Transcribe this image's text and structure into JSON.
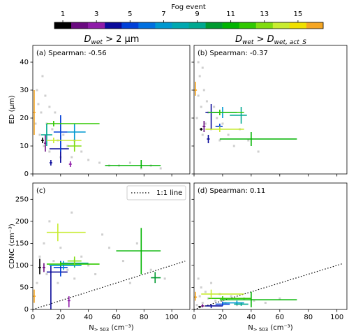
{
  "colorbar": {
    "title": "Fog event",
    "range": [
      0.5,
      16.5
    ],
    "ticks": [
      1,
      3,
      5,
      7,
      9,
      11,
      13,
      15
    ],
    "colors": [
      "#000000",
      "#6a0a80",
      "#8e1aa8",
      "#0a0a9a",
      "#0040d8",
      "#0070e0",
      "#0098d0",
      "#00a8b0",
      "#00a890",
      "#009a30",
      "#00b400",
      "#30c800",
      "#80dc10",
      "#c8ec30",
      "#f0e000",
      "#f5a623"
    ]
  },
  "column_titles": [
    {
      "base": "D",
      "sub": "wet",
      "rest": " > 2 μm"
    },
    {
      "base": "D",
      "sub": "wet",
      "rest": " > ",
      "base2": "D",
      "sub2": "wet, act_S"
    }
  ],
  "x_label": {
    "base": "N",
    "sub": "> 503",
    "rest": " (cm⁻³)"
  },
  "chart_data": [
    {
      "type": "errorbar",
      "label": "(a) Spearman: -0.56",
      "y_label": "ED (μm)",
      "xlim": [
        0,
        113
      ],
      "ylim": [
        0,
        46
      ],
      "xticks": [
        0,
        20,
        40,
        60,
        80,
        100
      ],
      "yticks": [
        0,
        10,
        20,
        30,
        40
      ],
      "points": [
        [
          2,
          18
        ],
        [
          4,
          25
        ],
        [
          5,
          14
        ],
        [
          6,
          22
        ],
        [
          8,
          10
        ],
        [
          10,
          18
        ],
        [
          12,
          8
        ],
        [
          14,
          16
        ],
        [
          16,
          22
        ],
        [
          18,
          12
        ],
        [
          20,
          6
        ],
        [
          22,
          14
        ],
        [
          25,
          10
        ],
        [
          28,
          6
        ],
        [
          30,
          12
        ],
        [
          35,
          8
        ],
        [
          40,
          5
        ],
        [
          48,
          4
        ],
        [
          55,
          3
        ],
        [
          62,
          3
        ],
        [
          70,
          4
        ],
        [
          78,
          2
        ],
        [
          85,
          3
        ],
        [
          92,
          2
        ],
        [
          3,
          30
        ],
        [
          7,
          35
        ],
        [
          9,
          28
        ],
        [
          12,
          24
        ]
      ],
      "errors": [
        {
          "event": 16,
          "x": 1,
          "y": 22,
          "xerr": [
            0,
            2
          ],
          "yerr": [
            14,
            30
          ]
        },
        {
          "event": 1,
          "x": 7,
          "y": 12,
          "xerr": [
            6,
            8
          ],
          "yerr": [
            11,
            13
          ]
        },
        {
          "event": 2,
          "x": 9,
          "y": 11,
          "xerr": [
            8,
            10
          ],
          "yerr": [
            8,
            14
          ]
        },
        {
          "event": 3,
          "x": 27,
          "y": 3.5,
          "xerr": [
            26,
            28
          ],
          "yerr": [
            2.5,
            4.5
          ]
        },
        {
          "event": 4,
          "x": 20,
          "y": 9,
          "xerr": [
            12,
            26
          ],
          "yerr": [
            4,
            14
          ]
        },
        {
          "event": 4,
          "x": 13,
          "y": 4,
          "xerr": [
            12,
            14
          ],
          "yerr": [
            3,
            5
          ]
        },
        {
          "event": 5,
          "x": 20,
          "y": 15,
          "xerr": [
            15,
            25
          ],
          "yerr": [
            8,
            21
          ]
        },
        {
          "event": 7,
          "x": 30,
          "y": 15,
          "xerr": [
            25,
            38
          ],
          "yerr": [
            10,
            18
          ]
        },
        {
          "event": 9,
          "x": 10,
          "y": 14,
          "xerr": [
            6,
            14
          ],
          "yerr": [
            10,
            18
          ]
        },
        {
          "event": 11,
          "x": 78,
          "y": 3,
          "xerr": [
            52,
            92
          ],
          "yerr": [
            2,
            5
          ]
        },
        {
          "event": 12,
          "x": 15,
          "y": 18,
          "xerr": [
            10,
            48
          ],
          "yerr": [
            17,
            19
          ]
        },
        {
          "event": 13,
          "x": 30,
          "y": 10,
          "xerr": [
            25,
            35
          ],
          "yerr": [
            8,
            12
          ]
        },
        {
          "event": 14,
          "x": 15,
          "y": 12,
          "xerr": [
            10,
            35
          ],
          "yerr": [
            11,
            13
          ]
        }
      ]
    },
    {
      "type": "errorbar",
      "label": "(b) Spearman: -0.37",
      "xlim": [
        0,
        107
      ],
      "ylim": [
        0,
        46
      ],
      "xticks": [
        0,
        20,
        40,
        60,
        80,
        100
      ],
      "yticks": [
        0,
        10,
        20,
        30,
        40
      ],
      "points": [
        [
          2,
          20
        ],
        [
          3,
          28
        ],
        [
          4,
          35
        ],
        [
          5,
          24
        ],
        [
          6,
          14
        ],
        [
          7,
          30
        ],
        [
          8,
          18
        ],
        [
          9,
          26
        ],
        [
          10,
          22
        ],
        [
          12,
          16
        ],
        [
          14,
          24
        ],
        [
          16,
          20
        ],
        [
          18,
          12
        ],
        [
          20,
          18
        ],
        [
          24,
          14
        ],
        [
          28,
          10
        ],
        [
          32,
          16
        ],
        [
          38,
          12
        ],
        [
          45,
          8
        ],
        [
          3,
          40
        ],
        [
          6,
          38
        ]
      ],
      "errors": [
        {
          "event": 16,
          "x": 1,
          "y": 30,
          "xerr": [
            0,
            2
          ],
          "yerr": [
            28,
            33
          ]
        },
        {
          "event": 1,
          "x": 5,
          "y": 16,
          "xerr": [
            4,
            6
          ],
          "yerr": [
            15.5,
            16.5
          ]
        },
        {
          "event": 2,
          "x": 7,
          "y": 17,
          "xerr": [
            6,
            8
          ],
          "yerr": [
            15,
            19
          ]
        },
        {
          "event": 4,
          "x": 12,
          "y": 22,
          "xerr": [
            8,
            18
          ],
          "yerr": [
            16,
            25
          ]
        },
        {
          "event": 4,
          "x": 10,
          "y": 12.5,
          "xerr": [
            9,
            11
          ],
          "yerr": [
            11,
            14
          ]
        },
        {
          "event": 5,
          "x": 18,
          "y": 17,
          "xerr": [
            15,
            20
          ],
          "yerr": [
            16,
            18
          ]
        },
        {
          "event": 7,
          "x": 20,
          "y": 22,
          "xerr": [
            10,
            30
          ],
          "yerr": [
            20,
            24
          ]
        },
        {
          "event": 9,
          "x": 33,
          "y": 21,
          "xerr": [
            25,
            37
          ],
          "yerr": [
            18,
            24
          ]
        },
        {
          "event": 11,
          "x": 40,
          "y": 12.5,
          "xerr": [
            18,
            72
          ],
          "yerr": [
            10,
            15
          ]
        },
        {
          "event": 12,
          "x": 18,
          "y": 22,
          "xerr": [
            10,
            35
          ],
          "yerr": [
            21,
            23
          ]
        },
        {
          "event": 14,
          "x": 18,
          "y": 16,
          "xerr": [
            8,
            35
          ],
          "yerr": [
            15,
            17
          ]
        }
      ]
    },
    {
      "type": "errorbar",
      "label": "(c)",
      "y_label": "CDNC (cm⁻³)",
      "xlim": [
        0,
        113
      ],
      "ylim": [
        0,
        287
      ],
      "xticks": [
        0,
        20,
        40,
        60,
        80,
        100
      ],
      "yticks": [
        0,
        50,
        100,
        150,
        200,
        250
      ],
      "diagonal": true,
      "diagonal_legend": "1:1 line",
      "points": [
        [
          3,
          60
        ],
        [
          5,
          120
        ],
        [
          8,
          150
        ],
        [
          10,
          80
        ],
        [
          12,
          200
        ],
        [
          15,
          110
        ],
        [
          18,
          60
        ],
        [
          20,
          140
        ],
        [
          25,
          90
        ],
        [
          30,
          70
        ],
        [
          35,
          120
        ],
        [
          40,
          100
        ],
        [
          45,
          80
        ],
        [
          55,
          140
        ],
        [
          65,
          110
        ],
        [
          75,
          150
        ],
        [
          85,
          90
        ],
        [
          95,
          70
        ],
        [
          28,
          220
        ],
        [
          50,
          170
        ],
        [
          70,
          60
        ]
      ],
      "errors": [
        {
          "event": 16,
          "x": 1,
          "y": 30,
          "xerr": [
            0,
            2
          ],
          "yerr": [
            15,
            45
          ]
        },
        {
          "event": 1,
          "x": 5,
          "y": 95,
          "xerr": [
            4,
            6
          ],
          "yerr": [
            80,
            115
          ]
        },
        {
          "event": 2,
          "x": 8,
          "y": 95,
          "xerr": [
            7,
            9
          ],
          "yerr": [
            85,
            105
          ]
        },
        {
          "event": 3,
          "x": 26,
          "y": 20,
          "xerr": [
            25,
            27
          ],
          "yerr": [
            5,
            30
          ]
        },
        {
          "event": 4,
          "x": 13,
          "y": 85,
          "xerr": [
            10,
            25
          ],
          "yerr": [
            0,
            100
          ]
        },
        {
          "event": 5,
          "x": 20,
          "y": 95,
          "xerr": [
            15,
            25
          ],
          "yerr": [
            75,
            110
          ]
        },
        {
          "event": 7,
          "x": 22,
          "y": 100,
          "xerr": [
            12,
            35
          ],
          "yerr": [
            90,
            110
          ]
        },
        {
          "event": 9,
          "x": 30,
          "y": 105,
          "xerr": [
            20,
            40
          ],
          "yerr": [
            95,
            115
          ]
        },
        {
          "event": 10,
          "x": 88,
          "y": 72,
          "xerr": [
            85,
            92
          ],
          "yerr": [
            60,
            85
          ]
        },
        {
          "event": 11,
          "x": 78,
          "y": 133,
          "xerr": [
            60,
            92
          ],
          "yerr": [
            80,
            185
          ]
        },
        {
          "event": 12,
          "x": 20,
          "y": 103,
          "xerr": [
            10,
            48
          ],
          "yerr": [
            98,
            108
          ]
        },
        {
          "event": 13,
          "x": 30,
          "y": 110,
          "xerr": [
            25,
            35
          ],
          "yerr": [
            100,
            120
          ]
        },
        {
          "event": 14,
          "x": 18,
          "y": 175,
          "xerr": [
            10,
            38
          ],
          "yerr": [
            155,
            195
          ]
        }
      ]
    },
    {
      "type": "errorbar",
      "label": "(d) Spearman: 0.11",
      "xlim": [
        0,
        107
      ],
      "ylim": [
        0,
        287
      ],
      "xticks": [
        0,
        20,
        40,
        60,
        80,
        100
      ],
      "yticks": [
        0,
        50,
        100,
        150,
        200,
        250
      ],
      "diagonal": true,
      "points": [
        [
          2,
          10
        ],
        [
          4,
          30
        ],
        [
          5,
          50
        ],
        [
          6,
          15
        ],
        [
          8,
          40
        ],
        [
          10,
          25
        ],
        [
          12,
          60
        ],
        [
          15,
          20
        ],
        [
          18,
          35
        ],
        [
          22,
          15
        ],
        [
          26,
          30
        ],
        [
          30,
          10
        ],
        [
          35,
          25
        ],
        [
          42,
          20
        ],
        [
          50,
          15
        ],
        [
          60,
          25
        ],
        [
          3,
          70
        ]
      ],
      "errors": [
        {
          "event": 16,
          "x": 1,
          "y": 28,
          "xerr": [
            0,
            2
          ],
          "yerr": [
            20,
            40
          ]
        },
        {
          "event": 1,
          "x": 4,
          "y": 6,
          "xerr": [
            3,
            5
          ],
          "yerr": [
            4,
            8
          ]
        },
        {
          "event": 2,
          "x": 6,
          "y": 8,
          "xerr": [
            5,
            7
          ],
          "yerr": [
            5,
            12
          ]
        },
        {
          "event": 4,
          "x": 12,
          "y": 8,
          "xerr": [
            8,
            20
          ],
          "yerr": [
            3,
            12
          ]
        },
        {
          "event": 5,
          "x": 20,
          "y": 12,
          "xerr": [
            15,
            25
          ],
          "yerr": [
            8,
            18
          ]
        },
        {
          "event": 7,
          "x": 30,
          "y": 15,
          "xerr": [
            20,
            35
          ],
          "yerr": [
            10,
            20
          ]
        },
        {
          "event": 9,
          "x": 33,
          "y": 12,
          "xerr": [
            28,
            38
          ],
          "yerr": [
            8,
            16
          ]
        },
        {
          "event": 11,
          "x": 40,
          "y": 22,
          "xerr": [
            18,
            72
          ],
          "yerr": [
            5,
            40
          ]
        },
        {
          "event": 12,
          "x": 20,
          "y": 25,
          "xerr": [
            10,
            40
          ],
          "yerr": [
            20,
            30
          ]
        },
        {
          "event": 14,
          "x": 12,
          "y": 35,
          "xerr": [
            5,
            35
          ],
          "yerr": [
            25,
            45
          ]
        }
      ]
    }
  ]
}
